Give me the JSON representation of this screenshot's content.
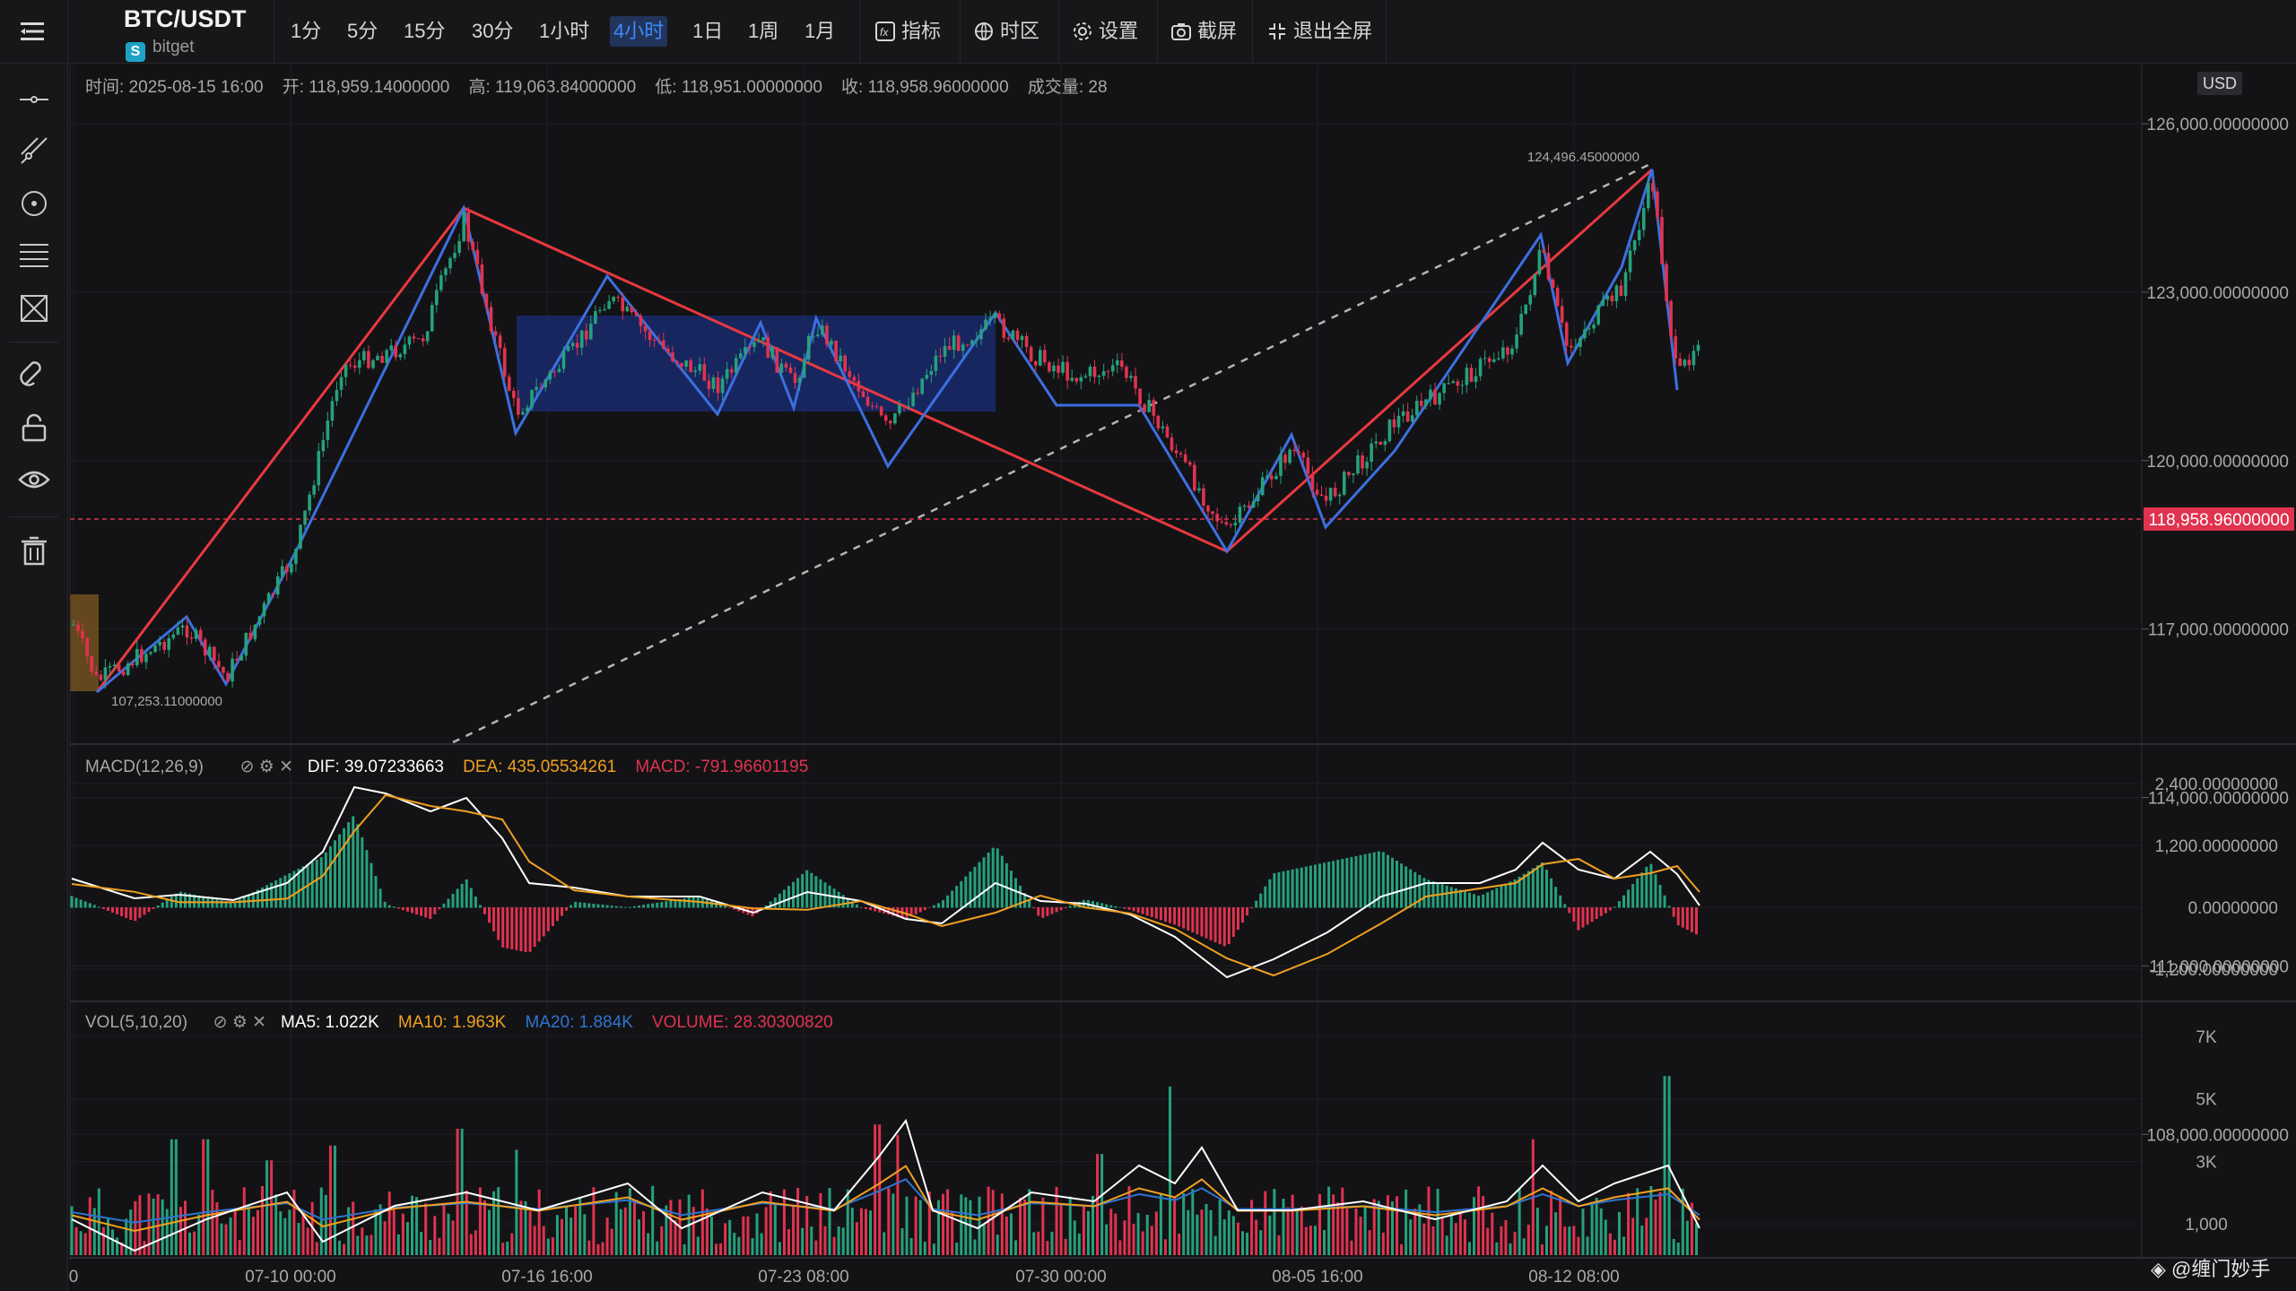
{
  "toolbar": {
    "symbol": "BTC/USDT",
    "exchange": "bitget",
    "timeframes": [
      "1分",
      "5分",
      "15分",
      "30分",
      "1小时",
      "4小时",
      "1日",
      "1周",
      "1月"
    ],
    "active_timeframe": "4小时",
    "indicators_label": "指标",
    "timezone_label": "时区",
    "settings_label": "设置",
    "screenshot_label": "截屏",
    "exit_fullscreen_label": "退出全屏"
  },
  "ohlc": {
    "time_label": "时间:",
    "time": "2025-08-15 16:00",
    "open_label": "开:",
    "open": "118,959.14000000",
    "high_label": "高:",
    "high": "119,063.84000000",
    "low_label": "低:",
    "low": "118,951.00000000",
    "close_label": "收:",
    "close": "118,958.96000000",
    "volume_label": "成交量:",
    "volume": "28"
  },
  "price_axis": {
    "currency": "USD",
    "ticks": [
      "126,000.00000000",
      "123,000.00000000",
      "120,000.00000000",
      "117,000.00000000",
      "114,000.00000000",
      "111,000.00000000",
      "108,000.00000000"
    ],
    "current_price": "118,958.96000000"
  },
  "annotations": {
    "high_label": "124,496.45000000",
    "low_label": "107,253.11000000"
  },
  "macd": {
    "name": "MACD(12,26,9)",
    "dif": "DIF: 39.07233663",
    "dea": "DEA: 435.05534261",
    "macd": "MACD: -791.96601195",
    "ticks": [
      "2,400.00000000",
      "1,200.00000000",
      "0.00000000",
      "-1,200.00000000"
    ]
  },
  "vol": {
    "name": "VOL(5,10,20)",
    "ma5": "MA5: 1.022K",
    "ma10": "MA10: 1.963K",
    "ma20": "MA20: 1.884K",
    "volume": "VOLUME: 28.30300820",
    "ticks": [
      "7K",
      "5K",
      "3K",
      "1,000"
    ]
  },
  "time_axis": [
    "0",
    "07-10 00:00",
    "07-16 16:00",
    "07-23 08:00",
    "07-30 00:00",
    "08-05 16:00",
    "08-12 08:00"
  ],
  "watermark": "@缠门妙手",
  "colors": {
    "up": "#26a17b",
    "down": "#e0334f",
    "red_line": "#e8393f",
    "blue_line": "#3c6fe0",
    "dif": "#ffffff",
    "dea": "#f0a020",
    "ma20": "#2f74d0",
    "accent": "#3d8bff"
  }
}
